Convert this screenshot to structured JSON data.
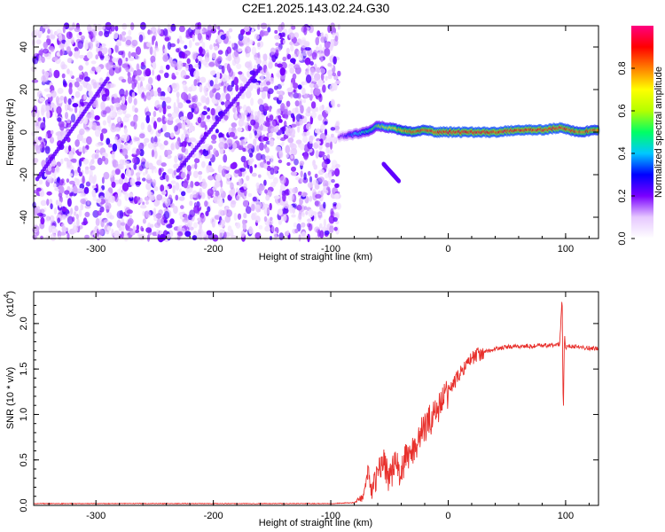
{
  "title": "C2E1.2025.143.02.24.G30",
  "chart_data": [
    {
      "type": "heatmap",
      "title": "C2E1.2025.143.02.24.G30",
      "xlabel": "Height of straight line (km)",
      "ylabel": "Frequency (Hz)",
      "xlim": [
        -353,
        128
      ],
      "ylim": [
        -50,
        50
      ],
      "xticks": [
        -300,
        -200,
        -100,
        0,
        100
      ],
      "yticks": [
        -40,
        -20,
        0,
        20,
        40
      ],
      "colorbar": {
        "label": "Normalized spectral amplitude",
        "range": [
          0,
          1
        ],
        "ticks": [
          "0.0",
          "0.2",
          "0.4",
          "0.6",
          "0.8"
        ],
        "colors": [
          "#ffffff",
          "#e6c8ff",
          "#7a00ff",
          "#0000ff",
          "#00c8ff",
          "#00ff64",
          "#b4ff00",
          "#ffff00",
          "#ff8000",
          "#ff0000",
          "#ff0080"
        ]
      },
      "noise_region": {
        "x": [
          -353,
          -93
        ],
        "level": "low amplitude (0.05 - 0.25)"
      },
      "dominant_line": {
        "x": [
          -93,
          -80,
          -70,
          -60,
          -50,
          -40,
          -30,
          -20,
          -10,
          0,
          20,
          40,
          60,
          80,
          95,
          110,
          128
        ],
        "y": [
          -2,
          -1,
          0,
          3,
          2,
          1,
          0,
          1,
          0,
          0,
          0,
          0,
          1,
          1,
          2,
          0,
          1
        ],
        "amplitude": [
          0.2,
          0.4,
          0.5,
          0.6,
          0.7,
          0.85,
          0.9,
          0.9,
          0.95,
          0.95,
          0.95,
          0.95,
          0.95,
          0.95,
          0.95,
          0.9,
          0.9
        ]
      },
      "faint_streaks": [
        {
          "x": [
            -350,
            -290
          ],
          "y": [
            -22,
            25
          ]
        },
        {
          "x": [
            -230,
            -160
          ],
          "y": [
            -18,
            30
          ]
        },
        {
          "x": [
            -55,
            -42
          ],
          "y": [
            -15,
            -23
          ]
        }
      ]
    },
    {
      "type": "line",
      "xlabel": "Height of straight line (km)",
      "ylabel": "SNR (10 * v/v)",
      "yscale_label": "(x10",
      "yscale_exp": "4",
      "xlim": [
        -353,
        128
      ],
      "ylim": [
        0,
        2.35
      ],
      "xticks": [
        -300,
        -200,
        -100,
        0,
        100
      ],
      "yticks": [
        "0.0",
        "0.5",
        "1.0",
        "1.5",
        "2.0"
      ],
      "series": [
        {
          "color": "#e8302c",
          "x": [
            -353,
            -300,
            -200,
            -100,
            -80,
            -72,
            -68,
            -65,
            -60,
            -55,
            -50,
            -45,
            -40,
            -35,
            -30,
            -25,
            -20,
            -15,
            -10,
            -5,
            0,
            5,
            10,
            15,
            20,
            25,
            30,
            35,
            40,
            50,
            60,
            70,
            80,
            90,
            95,
            97,
            98,
            99,
            100,
            102,
            105,
            110,
            115,
            120,
            128
          ],
          "y": [
            0.02,
            0.02,
            0.02,
            0.02,
            0.03,
            0.1,
            0.4,
            0.15,
            0.35,
            0.5,
            0.3,
            0.45,
            0.35,
            0.55,
            0.6,
            0.75,
            0.85,
            0.95,
            1.05,
            1.15,
            1.25,
            1.35,
            1.45,
            1.55,
            1.62,
            1.66,
            1.68,
            1.7,
            1.72,
            1.74,
            1.75,
            1.75,
            1.76,
            1.76,
            1.78,
            2.3,
            0.97,
            1.9,
            1.72,
            1.76,
            1.75,
            1.75,
            1.74,
            1.73,
            1.72
          ]
        }
      ]
    }
  ]
}
